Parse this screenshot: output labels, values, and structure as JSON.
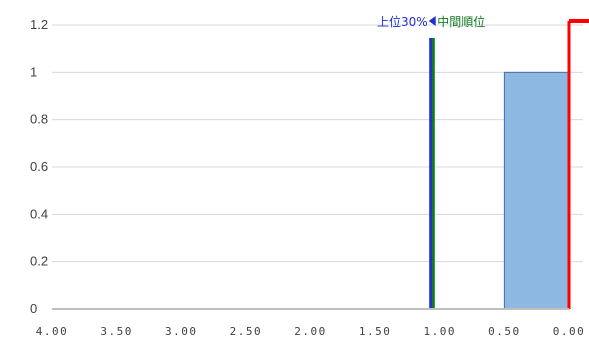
{
  "chart_data": {
    "type": "bar",
    "x_reversed": true,
    "xlim": [
      0,
      4
    ],
    "ylim": [
      0,
      1.2
    ],
    "y_ticks": [
      "0",
      "0.2",
      "0.4",
      "0.6",
      "0.8",
      "1",
      "1.2"
    ],
    "x_ticks": [
      {
        "label": "4.00",
        "value": 4.0
      },
      {
        "label": "3.50",
        "value": 3.5
      },
      {
        "label": "3.00",
        "value": 3.0
      },
      {
        "label": "2.50",
        "value": 2.5
      },
      {
        "label": "2.00",
        "value": 2.0
      },
      {
        "label": "1.50",
        "value": 1.5
      },
      {
        "label": "1.00",
        "value": 1.0
      },
      {
        "label": "0.50",
        "value": 0.5
      },
      {
        "label": "0.00",
        "value": 0.0
      }
    ],
    "bars": [
      {
        "x_start": 0.5,
        "x_end": 0.0,
        "value": 1
      }
    ],
    "grid": true,
    "markers": [
      {
        "label": "上位30%",
        "x": 1.07,
        "color": "#1f2fd6",
        "label_side": "left"
      },
      {
        "label": "中間順位",
        "x": 1.05,
        "color": "#107a20",
        "label_side": "right"
      },
      {
        "label": "",
        "x": 0.0,
        "color": "#ff0000"
      }
    ],
    "colors": {
      "bar_fill": "#8db8e2",
      "bar_stroke": "#3f6fa6",
      "grid": "#d9d9d9",
      "axis": "#bfbfbf"
    }
  }
}
